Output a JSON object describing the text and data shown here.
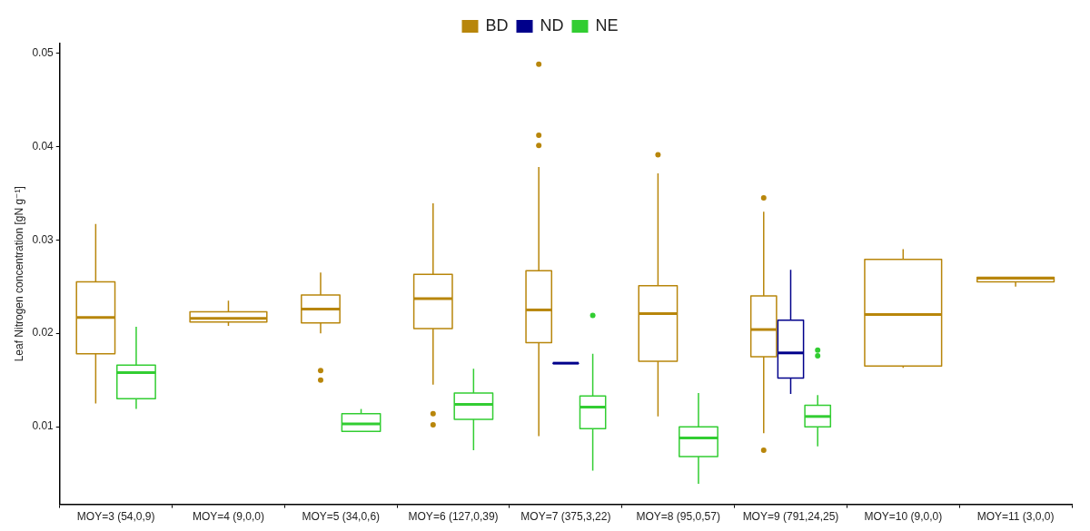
{
  "chart_data": {
    "type": "box",
    "ylabel": "Leaf Nitrogen concentration [gN g⁻¹]",
    "legend": "top",
    "categories": [
      "MOY=3 (54,0,9)",
      "MOY=4 (9,0,0)",
      "MOY=5 (34,0,6)",
      "MOY=6 (127,0,39)",
      "MOY=7 (375,3,22)",
      "MOY=8 (95,0,57)",
      "MOY=9 (791,24,25)",
      "MOY=10 (9,0,0)",
      "MOY=11 (3,0,0)"
    ],
    "ylim": [
      0.0017,
      0.051
    ],
    "yticks": [
      0.01,
      0.02,
      0.03,
      0.04,
      0.05
    ],
    "series": [
      {
        "name": "BD",
        "color": "#b8860b",
        "boxes": [
          {
            "low": 0.0125,
            "q1": 0.0178,
            "median": 0.0217,
            "q3": 0.0255,
            "high": 0.0317
          },
          {
            "low": 0.0208,
            "q1": 0.0212,
            "median": 0.0216,
            "q3": 0.0223,
            "high": 0.0235
          },
          {
            "low": 0.02,
            "q1": 0.0211,
            "median": 0.0226,
            "q3": 0.0241,
            "high": 0.0265,
            "outliers": [
              0.016,
              0.015
            ]
          },
          {
            "low": 0.0145,
            "q1": 0.0205,
            "median": 0.0237,
            "q3": 0.0263,
            "high": 0.0339,
            "outliers": [
              0.0114,
              0.0102
            ]
          },
          {
            "low": 0.009,
            "q1": 0.019,
            "median": 0.0225,
            "q3": 0.0267,
            "high": 0.0378,
            "outliers": [
              0.0488,
              0.0412,
              0.0401
            ]
          },
          {
            "low": 0.0111,
            "q1": 0.017,
            "median": 0.0221,
            "q3": 0.0251,
            "high": 0.0371,
            "outliers": [
              0.0391
            ]
          },
          {
            "low": 0.0093,
            "q1": 0.0175,
            "median": 0.0204,
            "q3": 0.024,
            "high": 0.033,
            "outliers": [
              0.0345,
              0.0075
            ]
          },
          {
            "low": 0.0163,
            "q1": 0.0165,
            "median": 0.022,
            "q3": 0.0279,
            "high": 0.029
          },
          {
            "low": 0.025,
            "q1": 0.0255,
            "median": 0.0259,
            "q3": 0.026,
            "high": 0.026
          }
        ]
      },
      {
        "name": "ND",
        "color": "#00008b",
        "boxes": [
          null,
          null,
          null,
          null,
          {
            "low": 0.0168,
            "q1": 0.0168,
            "median": 0.0168,
            "q3": 0.0168,
            "high": 0.0168
          },
          null,
          {
            "low": 0.0135,
            "q1": 0.0152,
            "median": 0.0179,
            "q3": 0.0214,
            "high": 0.0268
          },
          null,
          null
        ]
      },
      {
        "name": "NE",
        "color": "#32cd32",
        "boxes": [
          {
            "low": 0.0119,
            "q1": 0.013,
            "median": 0.0158,
            "q3": 0.0166,
            "high": 0.0207
          },
          null,
          {
            "low": 0.0095,
            "q1": 0.0095,
            "median": 0.0103,
            "q3": 0.0114,
            "high": 0.0119
          },
          {
            "low": 0.0075,
            "q1": 0.0108,
            "median": 0.0124,
            "q3": 0.0136,
            "high": 0.0162
          },
          {
            "low": 0.0053,
            "q1": 0.0098,
            "median": 0.0121,
            "q3": 0.0133,
            "high": 0.0178,
            "outliers": [
              0.0219
            ]
          },
          {
            "low": 0.0039,
            "q1": 0.0068,
            "median": 0.0088,
            "q3": 0.01,
            "high": 0.0136
          },
          {
            "low": 0.0079,
            "q1": 0.01,
            "median": 0.0111,
            "q3": 0.0123,
            "high": 0.0134,
            "outliers": [
              0.0182,
              0.0176
            ]
          },
          null,
          null
        ]
      }
    ]
  }
}
